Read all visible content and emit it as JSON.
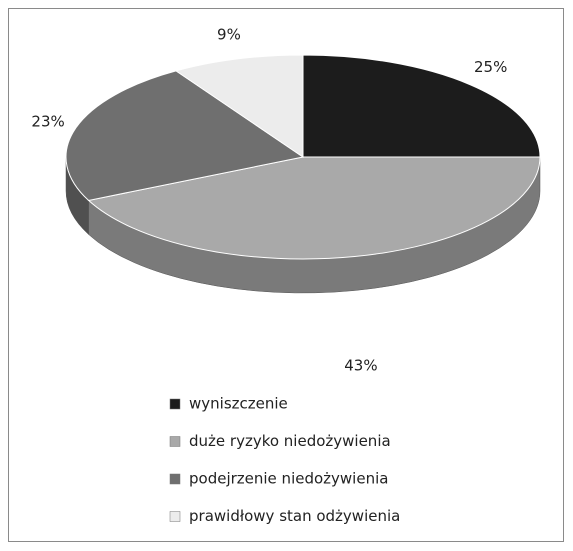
{
  "chart_data": {
    "type": "pie3d",
    "categories": [
      "wyniszczenie",
      "duże ryzyko niedożywienia",
      "podejrzenie niedożywienia",
      "prawidłowy stan odżywienia"
    ],
    "values": [
      25,
      43,
      23,
      9
    ],
    "colors": [
      "#1c1c1c",
      "#a9a9a9",
      "#6f6f6f",
      "#ececec"
    ],
    "legend": "bottom"
  }
}
